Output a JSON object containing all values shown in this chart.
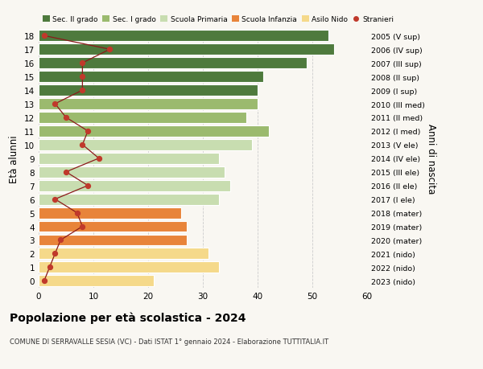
{
  "ages": [
    0,
    1,
    2,
    3,
    4,
    5,
    6,
    7,
    8,
    9,
    10,
    11,
    12,
    13,
    14,
    15,
    16,
    17,
    18
  ],
  "bar_values": [
    21,
    33,
    31,
    27,
    27,
    26,
    33,
    35,
    34,
    33,
    39,
    42,
    38,
    40,
    40,
    41,
    49,
    54,
    53
  ],
  "bar_colors": [
    "#f5d98a",
    "#f5d98a",
    "#f5d98a",
    "#e8843a",
    "#e8843a",
    "#e8843a",
    "#c8ddb0",
    "#c8ddb0",
    "#c8ddb0",
    "#c8ddb0",
    "#c8ddb0",
    "#9bba6e",
    "#9bba6e",
    "#9bba6e",
    "#4e7a3d",
    "#4e7a3d",
    "#4e7a3d",
    "#4e7a3d",
    "#4e7a3d"
  ],
  "stranieri": [
    1,
    2,
    3,
    4,
    8,
    7,
    3,
    9,
    5,
    11,
    8,
    9,
    5,
    3,
    8,
    8,
    8,
    13,
    1
  ],
  "right_labels": [
    "2023 (nido)",
    "2022 (nido)",
    "2021 (nido)",
    "2020 (mater)",
    "2019 (mater)",
    "2018 (mater)",
    "2017 (I ele)",
    "2016 (II ele)",
    "2015 (III ele)",
    "2014 (IV ele)",
    "2013 (V ele)",
    "2012 (I med)",
    "2011 (II med)",
    "2010 (III med)",
    "2009 (I sup)",
    "2008 (II sup)",
    "2007 (III sup)",
    "2006 (IV sup)",
    "2005 (V sup)"
  ],
  "legend_labels": [
    "Sec. II grado",
    "Sec. I grado",
    "Scuola Primaria",
    "Scuola Infanzia",
    "Asilo Nido",
    "Stranieri"
  ],
  "legend_colors": [
    "#4e7a3d",
    "#9bba6e",
    "#c8ddb0",
    "#e8843a",
    "#f5d98a",
    "#c0392b"
  ],
  "ylabel_left": "Età alunni",
  "ylabel_right": "Anni di nascita",
  "title": "Popolazione per età scolastica - 2024",
  "subtitle": "COMUNE DI SERRAVALLE SESIA (VC) - Dati ISTAT 1° gennaio 2024 - Elaborazione TUTTITALIA.IT",
  "xlim": [
    0,
    60
  ],
  "xticks": [
    0,
    10,
    20,
    30,
    40,
    50,
    60
  ],
  "bg_color": "#f9f7f2",
  "bar_edge_color": "white",
  "stranieri_color": "#c0392b",
  "stranieri_line_color": "#8b1a1a",
  "grid_color": "#cccccc"
}
